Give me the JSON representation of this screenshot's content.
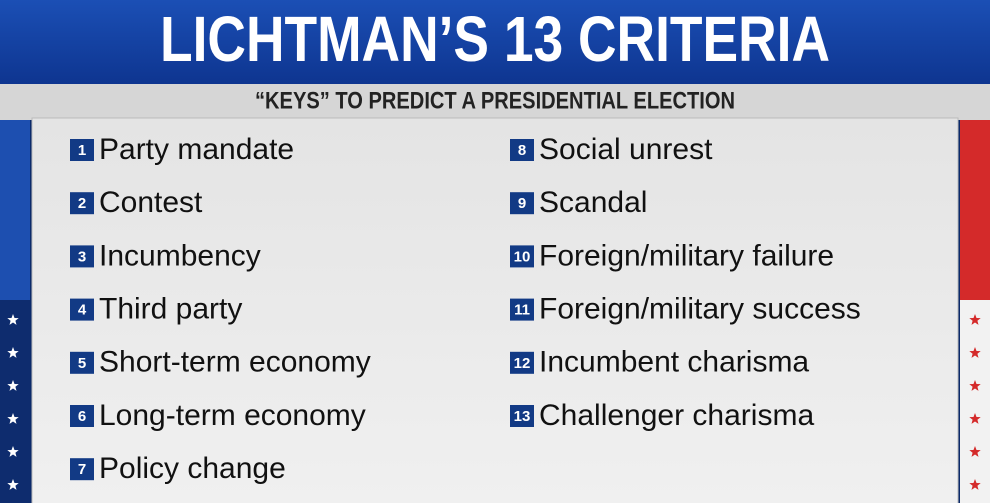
{
  "header": {
    "title": "LICHTMAN’S 13 CRITERIA",
    "subtitle": "“KEYS” TO PREDICT A PRESIDENTIAL ELECTION"
  },
  "keys": [
    {
      "number": 1,
      "label": "Party mandate"
    },
    {
      "number": 2,
      "label": "Contest"
    },
    {
      "number": 3,
      "label": "Incumbency"
    },
    {
      "number": 4,
      "label": "Third party"
    },
    {
      "number": 5,
      "label": "Short-term economy"
    },
    {
      "number": 6,
      "label": "Long-term economy"
    },
    {
      "number": 7,
      "label": "Policy change"
    },
    {
      "number": 8,
      "label": "Social unrest"
    },
    {
      "number": 9,
      "label": "Scandal"
    },
    {
      "number": 10,
      "label": "Foreign/military failure"
    },
    {
      "number": 11,
      "label": "Foreign/military success"
    },
    {
      "number": 12,
      "label": "Incumbent charisma"
    },
    {
      "number": 13,
      "label": "Challenger charisma"
    }
  ]
}
